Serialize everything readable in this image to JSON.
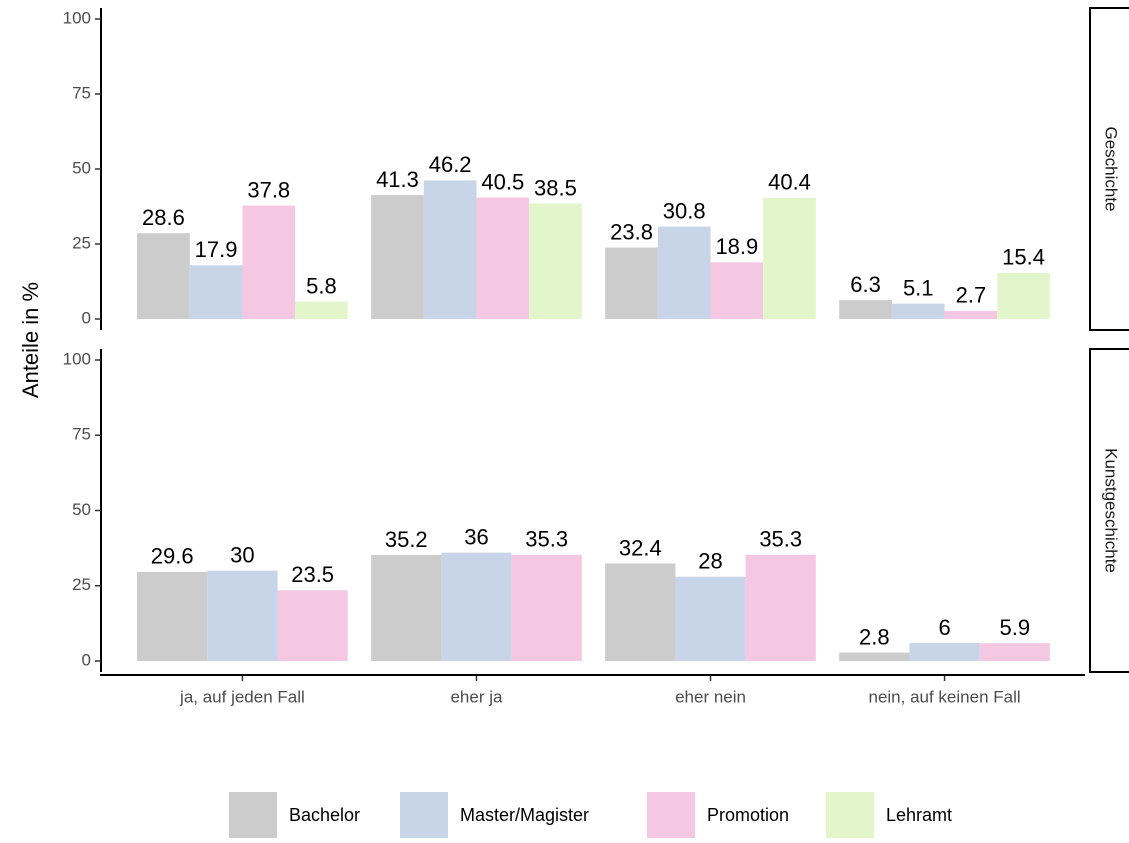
{
  "chart_data": [
    {
      "type": "bar",
      "facet": "Geschichte",
      "y_label": "Anteile in %",
      "categories": [
        "ja, auf jeden Fall",
        "eher ja",
        "eher nein",
        "nein, auf keinen Fall"
      ],
      "series": [
        {
          "name": "Bachelor",
          "color": "#cccccc",
          "values": [
            28.6,
            41.3,
            23.8,
            6.3
          ]
        },
        {
          "name": "Master/Magister",
          "color": "#c8d4e7",
          "values": [
            17.9,
            46.2,
            30.8,
            5.1
          ]
        },
        {
          "name": "Promotion",
          "color": "#f4c8e3",
          "values": [
            37.8,
            40.5,
            18.9,
            2.7
          ]
        },
        {
          "name": "Lehramt",
          "color": "#e3f5cb",
          "values": [
            5.8,
            38.5,
            40.4,
            15.4
          ]
        }
      ],
      "ylim": [
        0,
        100
      ],
      "yticks": [
        0,
        25,
        50,
        75,
        100
      ]
    },
    {
      "type": "bar",
      "facet": "Kunstgeschichte",
      "categories": [
        "ja, auf jeden Fall",
        "eher ja",
        "eher nein",
        "nein, auf keinen Fall"
      ],
      "series": [
        {
          "name": "Bachelor",
          "color": "#cccccc",
          "values": [
            29.6,
            35.2,
            32.4,
            2.8
          ]
        },
        {
          "name": "Master/Magister",
          "color": "#c8d4e7",
          "values": [
            30,
            36,
            28,
            6
          ]
        },
        {
          "name": "Promotion",
          "color": "#f4c8e3",
          "values": [
            23.5,
            35.3,
            35.3,
            5.9
          ]
        }
      ],
      "ylim": [
        0,
        100
      ],
      "yticks": [
        0,
        25,
        50,
        75,
        100
      ]
    }
  ]
}
